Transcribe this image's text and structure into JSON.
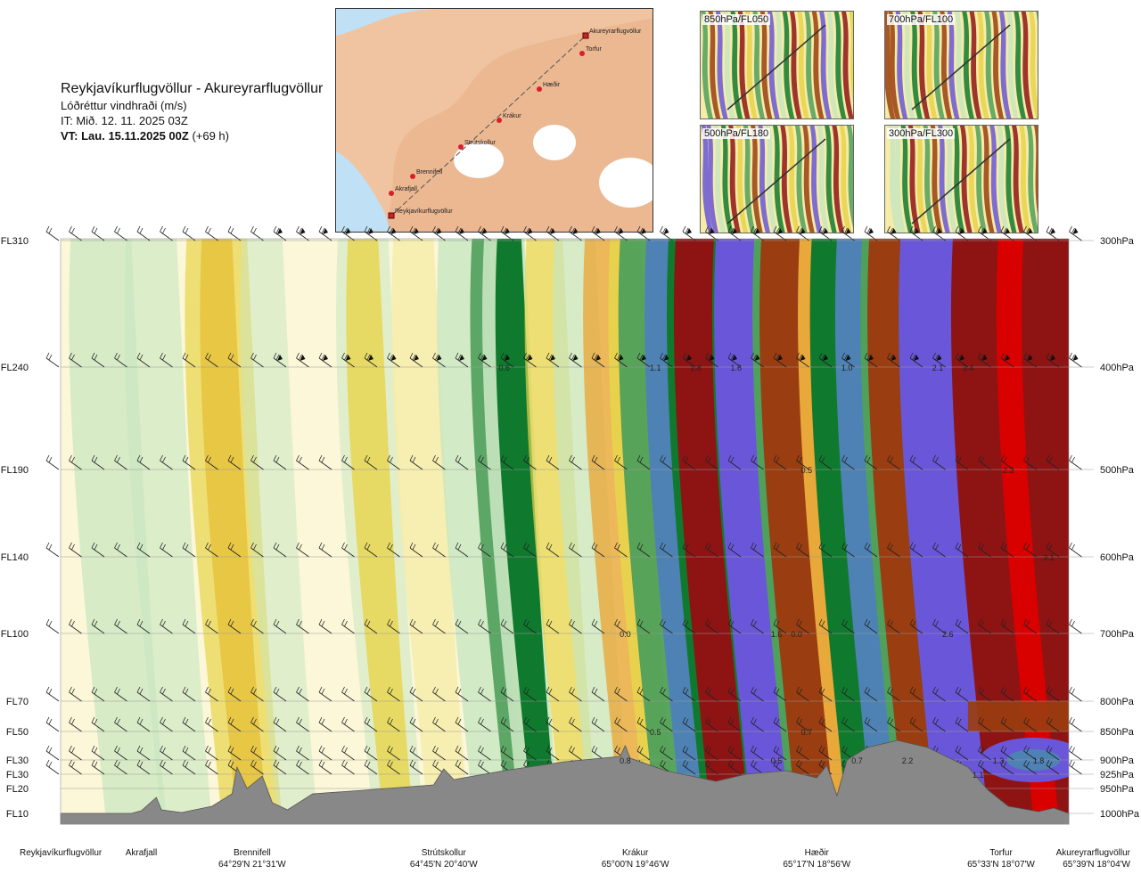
{
  "header": {
    "title": "Reykjavíkurflugvöllur - Akureyrarflugvöllur",
    "subtitle": "Lóðréttur vindhraði (m/s)",
    "issue_time": "IT: Mið. 12. 11. 2025 03Z",
    "valid_time_label": "VT: Lau. 15.11.2025 00Z",
    "valid_time_offset": "(+69 h)"
  },
  "insets": [
    {
      "label": "850hPa/FL050"
    },
    {
      "label": "700hPa/FL100"
    },
    {
      "label": "500hPa/FL180"
    },
    {
      "label": "300hPa/FL300"
    }
  ],
  "route_map": {
    "points": [
      {
        "name": "Akureyrarflugvöllur"
      },
      {
        "name": "Torfur"
      },
      {
        "name": "Hæðir"
      },
      {
        "name": "Krákur"
      },
      {
        "name": "Strútskollur"
      },
      {
        "name": "Brennifell"
      },
      {
        "name": "Akrafjall"
      },
      {
        "name": "Reykjavíkurflugvöllur"
      }
    ]
  },
  "chart_data": {
    "type": "heatmap",
    "title": "Reykjavíkurflugvöllur - Akureyrarflugvöllur",
    "variable": "Lóðréttur vindhraði (m/s)",
    "left_axis_levels": [
      {
        "label": "FL310",
        "pressure": 300
      },
      {
        "label": "FL240",
        "pressure": 400
      },
      {
        "label": "FL190",
        "pressure": 500
      },
      {
        "label": "FL140",
        "pressure": 600
      },
      {
        "label": "FL100",
        "pressure": 700
      },
      {
        "label": "FL70",
        "pressure": 800
      },
      {
        "label": "FL50",
        "pressure": 850
      },
      {
        "label": "FL30",
        "pressure": 900
      },
      {
        "label": "FL30",
        "pressure": 925
      },
      {
        "label": "FL20",
        "pressure": 950
      },
      {
        "label": "FL10",
        "pressure": 1000
      }
    ],
    "right_axis_levels": [
      "300hPa",
      "400hPa",
      "500hPa",
      "600hPa",
      "700hPa",
      "800hPa",
      "850hPa",
      "900hPa",
      "925hPa",
      "950hPa",
      "1000hPa"
    ],
    "bottom_locations": [
      {
        "name": "Reykjavíkurflugvöllur",
        "coord": "",
        "pos": 0.0
      },
      {
        "name": "Akrafjall",
        "coord": "",
        "pos": 0.08
      },
      {
        "name": "Brennifell",
        "coord": "64°29'N 21°31'W",
        "pos": 0.19
      },
      {
        "name": "Strútskollur",
        "coord": "64°45'N 20°40'W",
        "pos": 0.38
      },
      {
        "name": "Krákur",
        "coord": "65°00'N 19°46'W",
        "pos": 0.57
      },
      {
        "name": "Hæðir",
        "coord": "65°17'N 18°56'W",
        "pos": 0.75
      },
      {
        "name": "Torfur",
        "coord": "65°33'N 18°07'W",
        "pos": 0.94
      },
      {
        "name": "Akureyrarflugvöllur",
        "coord": "65°39'N 18°04'W",
        "pos": 1.0
      }
    ],
    "contour_values": [
      {
        "text": "0.6",
        "pos": 0.44,
        "pressure": 400
      },
      {
        "text": "1.1",
        "pos": 0.59,
        "pressure": 400
      },
      {
        "text": "1.8",
        "pos": 0.63,
        "pressure": 400
      },
      {
        "text": "1.6",
        "pos": 0.67,
        "pressure": 400
      },
      {
        "text": "1.0",
        "pos": 0.78,
        "pressure": 400
      },
      {
        "text": "2.1",
        "pos": 0.87,
        "pressure": 400
      },
      {
        "text": "3.4",
        "pos": 0.9,
        "pressure": 400
      },
      {
        "text": "0.5",
        "pos": 0.74,
        "pressure": 500
      },
      {
        "text": "2.3",
        "pos": 0.94,
        "pressure": 500
      },
      {
        "text": "3.1",
        "pos": 0.98,
        "pressure": 600
      },
      {
        "text": "0.0",
        "pos": 0.56,
        "pressure": 700
      },
      {
        "text": "1.6",
        "pos": 0.71,
        "pressure": 700
      },
      {
        "text": "0.0",
        "pos": 0.73,
        "pressure": 700
      },
      {
        "text": "2.6",
        "pos": 0.88,
        "pressure": 700
      },
      {
        "text": "0.5",
        "pos": 0.59,
        "pressure": 850
      },
      {
        "text": "0.7",
        "pos": 0.74,
        "pressure": 850
      },
      {
        "text": "0.8",
        "pos": 0.56,
        "pressure": 900
      },
      {
        "text": "0.5",
        "pos": 0.71,
        "pressure": 900
      },
      {
        "text": "0.7",
        "pos": 0.79,
        "pressure": 900
      },
      {
        "text": "2.2",
        "pos": 0.84,
        "pressure": 900
      },
      {
        "text": "1.3",
        "pos": 0.93,
        "pressure": 900
      },
      {
        "text": "1.8",
        "pos": 0.97,
        "pressure": 900
      },
      {
        "text": "1.1",
        "pos": 0.91,
        "pressure": 925
      }
    ],
    "colors": {
      "strong_down": "#e8d44a",
      "moderate_down": "#e8a83a",
      "weak_down": "#f6eca8",
      "neutral": "#fbf7d8",
      "weak_up": "#c8e6c0",
      "moderate_up": "#4fa05a",
      "strong_up": "#0f7a2e",
      "very_strong_up": "#4e82b4",
      "extreme_up": "#6a56d8",
      "strong_brown": "#9a3d10",
      "extreme_red": "#8e1414",
      "max_red": "#d90000",
      "terrain": "#888888"
    }
  }
}
